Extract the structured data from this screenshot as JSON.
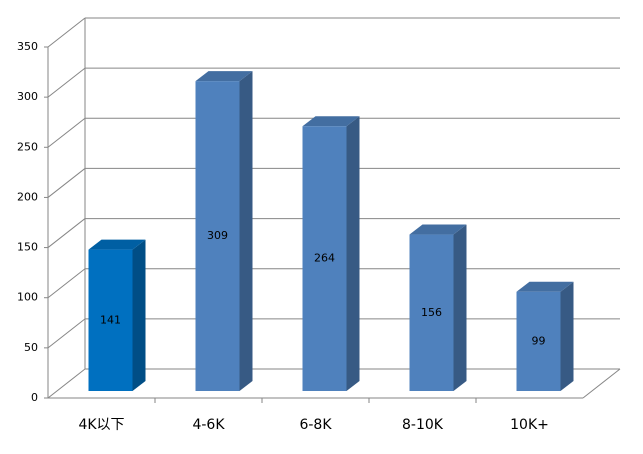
{
  "chart_data": {
    "type": "bar3d",
    "categories": [
      "4K以下",
      "4-6K",
      "6-8K",
      "8-10K",
      "10K+"
    ],
    "values": [
      141,
      309,
      264,
      156,
      99
    ],
    "colors": [
      "#0070c0",
      "#4f81bd",
      "#4f81bd",
      "#4f81bd",
      "#4f81bd"
    ],
    "ylim": [
      0,
      350
    ],
    "yticks": [
      0,
      50,
      100,
      150,
      200,
      250,
      300,
      350
    ],
    "grid": true
  }
}
